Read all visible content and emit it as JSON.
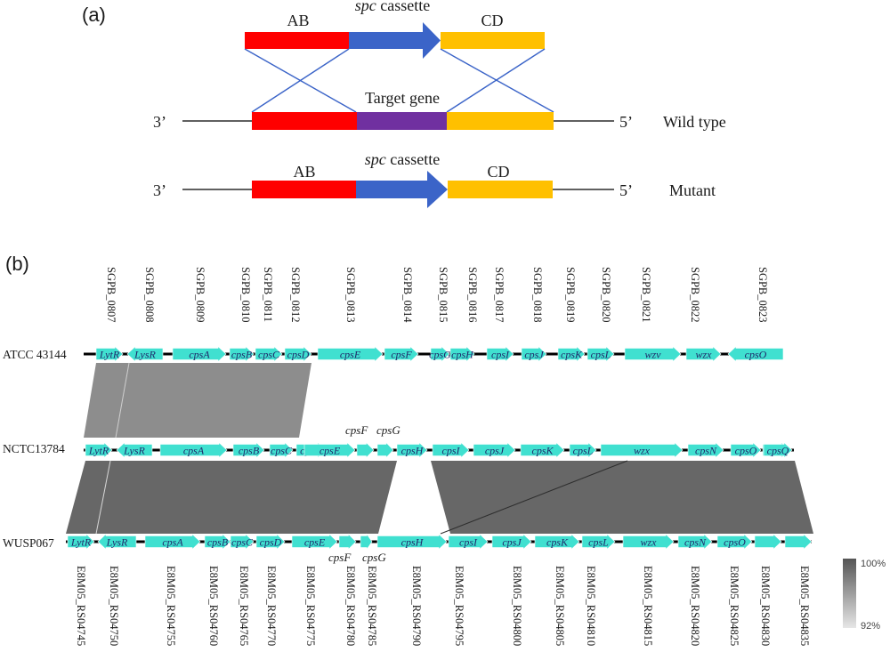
{
  "panel_a": {
    "label": "(a)",
    "top_row": {
      "left": "AB",
      "middle_italic": "spc",
      "middle_rest": " cassette",
      "right": "CD"
    },
    "wild_type": {
      "left_end": "3’",
      "right_end": "5’",
      "middle": "Target gene",
      "name": "Wild type"
    },
    "mutant": {
      "left": "AB",
      "middle_italic": "spc",
      "middle_rest": " cassette",
      "right": "CD",
      "left_end": "3’",
      "right_end": "5’",
      "name": "Mutant"
    },
    "colors": {
      "arm_ab": "#ff0000",
      "cassette": "#3b64c8",
      "arm_cd": "#ffc000",
      "target": "#7030a0",
      "cross": "#3b64c8"
    }
  },
  "panel_b": {
    "label": "(b)",
    "gene_color": "#40e0d0",
    "top_loci": [
      "SGPB_0807",
      "SGPB_0808",
      "SGPB_0809",
      "SGPB_0810",
      "SGPB_0811",
      "SGPB_0812",
      "SGPB_0813",
      "SGPB_0814",
      "SGPB_0815",
      "SGPB_0816",
      "SGPB_0817",
      "SGPB_0818",
      "SGPB_0819",
      "SGPB_0820",
      "SGPB_0821",
      "SGPB_0822",
      "SGPB_0823"
    ],
    "bottom_loci": [
      "E8M05_RS04745",
      "E8M05_RS04750",
      "E8M05_RS04755",
      "E8M05_RS04760",
      "E8M05_RS04765",
      "E8M05_RS04770",
      "E8M05_RS04775",
      "E8M05_RS04780",
      "E8M05_RS04785",
      "E8M05_RS04790",
      "E8M05_RS04795",
      "E8M05_RS04800",
      "E8M05_RS04805",
      "E8M05_RS04810",
      "E8M05_RS04815",
      "E8M05_RS04820",
      "E8M05_RS04825",
      "E8M05_RS04830",
      "E8M05_RS04835"
    ],
    "tracks": [
      {
        "strain": "ATCC 43144",
        "genes": [
          {
            "label": "LytR",
            "dir": "right"
          },
          {
            "label": "LysR",
            "dir": "left"
          },
          {
            "label": "cpsA",
            "dir": "right"
          },
          {
            "label": "cpsB",
            "dir": "right"
          },
          {
            "label": "cpsC",
            "dir": "right"
          },
          {
            "label": "cpsD",
            "dir": "right"
          },
          {
            "label": "cpsE",
            "dir": "right"
          },
          {
            "label": "cpsF",
            "dir": "right"
          },
          {
            "label": "cpsG",
            "dir": "right"
          },
          {
            "label": "cpsH",
            "dir": "right"
          },
          {
            "label": "cpsI",
            "dir": "right"
          },
          {
            "label": "cpsJ",
            "dir": "right"
          },
          {
            "label": "cpsK",
            "dir": "right"
          },
          {
            "label": "cpsL",
            "dir": "right"
          },
          {
            "label": "wzv",
            "dir": "right"
          },
          {
            "label": "wzx",
            "dir": "right"
          },
          {
            "label": "cpsO",
            "dir": "left"
          }
        ]
      },
      {
        "strain": "NCTC13784",
        "genes": [
          {
            "label": "LytR",
            "dir": "right"
          },
          {
            "label": "LysR",
            "dir": "left"
          },
          {
            "label": "cpsA",
            "dir": "right"
          },
          {
            "label": "cpsB",
            "dir": "right"
          },
          {
            "label": "cpsC",
            "dir": "right"
          },
          {
            "label": "cpsD",
            "dir": "right"
          },
          {
            "label": "cpsE",
            "dir": "right"
          },
          {
            "label": "",
            "dir": "right"
          },
          {
            "label": "",
            "dir": "right"
          },
          {
            "label": "cpsH",
            "dir": "right"
          },
          {
            "label": "cpsI",
            "dir": "right"
          },
          {
            "label": "cpsJ",
            "dir": "right"
          },
          {
            "label": "cpsK",
            "dir": "right"
          },
          {
            "label": "cpsL",
            "dir": "right"
          },
          {
            "label": "wzx",
            "dir": "right"
          },
          {
            "label": "cpsN",
            "dir": "right"
          },
          {
            "label": "cpsO",
            "dir": "right"
          },
          {
            "label": "cpsP",
            "dir": "right"
          },
          {
            "label": "cpsQ",
            "dir": "right"
          }
        ],
        "above_labels": [
          "cpsF",
          "cpsG"
        ]
      },
      {
        "strain": "WUSP067",
        "genes": [
          {
            "label": "LytR",
            "dir": "right"
          },
          {
            "label": "LysR",
            "dir": "left"
          },
          {
            "label": "cpsA",
            "dir": "right"
          },
          {
            "label": "cpsB",
            "dir": "right"
          },
          {
            "label": "cpsC",
            "dir": "right"
          },
          {
            "label": "cpsD",
            "dir": "right"
          },
          {
            "label": "cpsE",
            "dir": "right"
          },
          {
            "label": "",
            "dir": "right"
          },
          {
            "label": "",
            "dir": "right"
          },
          {
            "label": "cpsH",
            "dir": "right"
          },
          {
            "label": "cpsI",
            "dir": "right"
          },
          {
            "label": "cpsJ",
            "dir": "right"
          },
          {
            "label": "cpsK",
            "dir": "right"
          },
          {
            "label": "cpsL",
            "dir": "right"
          },
          {
            "label": "wzx",
            "dir": "right"
          },
          {
            "label": "cpsN",
            "dir": "right"
          },
          {
            "label": "cpsO",
            "dir": "right"
          },
          {
            "label": "",
            "dir": "right"
          },
          {
            "label": "",
            "dir": "right"
          }
        ],
        "below_labels": [
          "cpsF",
          "cpsG"
        ]
      }
    ],
    "legend": {
      "max": "100%",
      "min": "92%"
    }
  }
}
